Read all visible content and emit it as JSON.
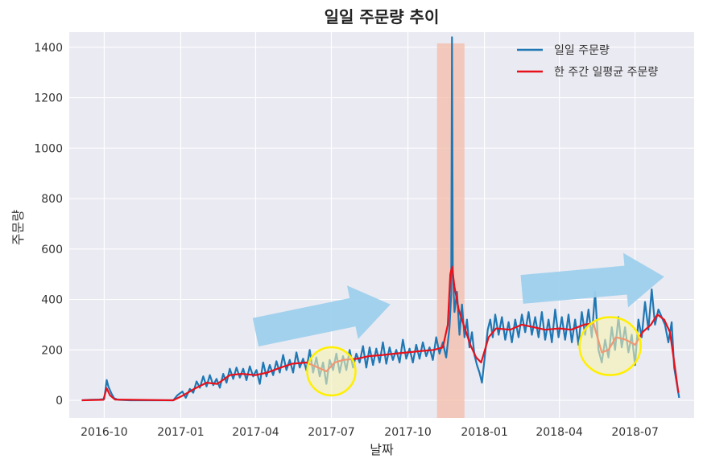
{
  "chart_data": {
    "type": "line",
    "title": "일일 주문량 추이",
    "xlabel": "날짜",
    "ylabel": "주문량",
    "x_range": [
      "2016-08-20",
      "2018-09-10"
    ],
    "ylim": [
      -70,
      1460
    ],
    "grid": true,
    "background": "#eaeaf2",
    "legend": {
      "position": "top-right"
    },
    "x_ticks": [
      {
        "date": "2016-10-01",
        "label": "2016-10"
      },
      {
        "date": "2017-01-01",
        "label": "2017-01"
      },
      {
        "date": "2017-04-01",
        "label": "2017-04"
      },
      {
        "date": "2017-07-01",
        "label": "2017-07"
      },
      {
        "date": "2017-10-01",
        "label": "2017-10"
      },
      {
        "date": "2018-01-01",
        "label": "2018-01"
      },
      {
        "date": "2018-04-01",
        "label": "2018-04"
      },
      {
        "date": "2018-07-01",
        "label": "2018-07"
      }
    ],
    "y_ticks": [
      {
        "value": 0,
        "label": "0"
      },
      {
        "value": 200,
        "label": "200"
      },
      {
        "value": 400,
        "label": "400"
      },
      {
        "value": 600,
        "label": "600"
      },
      {
        "value": 800,
        "label": "800"
      },
      {
        "value": 1000,
        "label": "1000"
      },
      {
        "value": 1200,
        "label": "1200"
      },
      {
        "value": 1400,
        "label": "1400"
      }
    ],
    "series": [
      {
        "name": "일일 주문량",
        "color": "#1f77b4",
        "points": [
          [
            "2016-09-04",
            0
          ],
          [
            "2016-09-15",
            2
          ],
          [
            "2016-09-25",
            3
          ],
          [
            "2016-10-01",
            5
          ],
          [
            "2016-10-04",
            80
          ],
          [
            "2016-10-06",
            55
          ],
          [
            "2016-10-08",
            40
          ],
          [
            "2016-10-10",
            25
          ],
          [
            "2016-10-13",
            8
          ],
          [
            "2016-10-18",
            2
          ],
          [
            "2016-11-01",
            0
          ],
          [
            "2016-12-01",
            0
          ],
          [
            "2016-12-23",
            0
          ],
          [
            "2016-12-28",
            20
          ],
          [
            "2017-01-03",
            35
          ],
          [
            "2017-01-07",
            10
          ],
          [
            "2017-01-12",
            45
          ],
          [
            "2017-01-16",
            30
          ],
          [
            "2017-01-20",
            75
          ],
          [
            "2017-01-24",
            50
          ],
          [
            "2017-01-28",
            95
          ],
          [
            "2017-02-01",
            55
          ],
          [
            "2017-02-05",
            100
          ],
          [
            "2017-02-09",
            60
          ],
          [
            "2017-02-13",
            85
          ],
          [
            "2017-02-17",
            50
          ],
          [
            "2017-02-21",
            105
          ],
          [
            "2017-02-25",
            70
          ],
          [
            "2017-03-01",
            125
          ],
          [
            "2017-03-05",
            85
          ],
          [
            "2017-03-09",
            130
          ],
          [
            "2017-03-13",
            90
          ],
          [
            "2017-03-17",
            125
          ],
          [
            "2017-03-21",
            80
          ],
          [
            "2017-03-25",
            135
          ],
          [
            "2017-03-29",
            95
          ],
          [
            "2017-04-02",
            120
          ],
          [
            "2017-04-06",
            65
          ],
          [
            "2017-04-10",
            150
          ],
          [
            "2017-04-14",
            95
          ],
          [
            "2017-04-18",
            140
          ],
          [
            "2017-04-22",
            100
          ],
          [
            "2017-04-26",
            155
          ],
          [
            "2017-04-30",
            110
          ],
          [
            "2017-05-04",
            180
          ],
          [
            "2017-05-08",
            120
          ],
          [
            "2017-05-12",
            160
          ],
          [
            "2017-05-16",
            110
          ],
          [
            "2017-05-20",
            190
          ],
          [
            "2017-05-24",
            130
          ],
          [
            "2017-05-28",
            165
          ],
          [
            "2017-06-01",
            120
          ],
          [
            "2017-06-05",
            200
          ],
          [
            "2017-06-09",
            110
          ],
          [
            "2017-06-13",
            170
          ],
          [
            "2017-06-17",
            95
          ],
          [
            "2017-06-21",
            150
          ],
          [
            "2017-06-25",
            65
          ],
          [
            "2017-06-29",
            160
          ],
          [
            "2017-07-03",
            120
          ],
          [
            "2017-07-07",
            185
          ],
          [
            "2017-07-11",
            110
          ],
          [
            "2017-07-15",
            175
          ],
          [
            "2017-07-19",
            120
          ],
          [
            "2017-07-23",
            200
          ],
          [
            "2017-07-27",
            130
          ],
          [
            "2017-07-31",
            185
          ],
          [
            "2017-08-04",
            150
          ],
          [
            "2017-08-08",
            215
          ],
          [
            "2017-08-12",
            130
          ],
          [
            "2017-08-16",
            210
          ],
          [
            "2017-08-20",
            140
          ],
          [
            "2017-08-24",
            205
          ],
          [
            "2017-08-28",
            150
          ],
          [
            "2017-09-01",
            230
          ],
          [
            "2017-09-05",
            145
          ],
          [
            "2017-09-09",
            210
          ],
          [
            "2017-09-13",
            160
          ],
          [
            "2017-09-17",
            200
          ],
          [
            "2017-09-21",
            150
          ],
          [
            "2017-09-25",
            240
          ],
          [
            "2017-09-29",
            165
          ],
          [
            "2017-10-03",
            205
          ],
          [
            "2017-10-07",
            150
          ],
          [
            "2017-10-11",
            220
          ],
          [
            "2017-10-15",
            165
          ],
          [
            "2017-10-19",
            230
          ],
          [
            "2017-10-23",
            175
          ],
          [
            "2017-10-27",
            210
          ],
          [
            "2017-10-31",
            160
          ],
          [
            "2017-11-04",
            250
          ],
          [
            "2017-11-08",
            185
          ],
          [
            "2017-11-12",
            230
          ],
          [
            "2017-11-16",
            170
          ],
          [
            "2017-11-20",
            290
          ],
          [
            "2017-11-22",
            420
          ],
          [
            "2017-11-23",
            1440
          ],
          [
            "2017-11-24",
            520
          ],
          [
            "2017-11-26",
            350
          ],
          [
            "2017-11-29",
            430
          ],
          [
            "2017-12-02",
            260
          ],
          [
            "2017-12-05",
            380
          ],
          [
            "2017-12-08",
            250
          ],
          [
            "2017-12-11",
            320
          ],
          [
            "2017-12-14",
            210
          ],
          [
            "2017-12-17",
            270
          ],
          [
            "2017-12-20",
            180
          ],
          [
            "2017-12-23",
            140
          ],
          [
            "2017-12-26",
            110
          ],
          [
            "2017-12-29",
            70
          ],
          [
            "2018-01-02",
            190
          ],
          [
            "2018-01-05",
            280
          ],
          [
            "2018-01-08",
            320
          ],
          [
            "2018-01-11",
            250
          ],
          [
            "2018-01-14",
            340
          ],
          [
            "2018-01-18",
            260
          ],
          [
            "2018-01-22",
            330
          ],
          [
            "2018-01-26",
            240
          ],
          [
            "2018-01-30",
            310
          ],
          [
            "2018-02-03",
            230
          ],
          [
            "2018-02-07",
            320
          ],
          [
            "2018-02-11",
            250
          ],
          [
            "2018-02-15",
            340
          ],
          [
            "2018-02-19",
            270
          ],
          [
            "2018-02-23",
            350
          ],
          [
            "2018-02-27",
            260
          ],
          [
            "2018-03-03",
            330
          ],
          [
            "2018-03-07",
            250
          ],
          [
            "2018-03-11",
            350
          ],
          [
            "2018-03-15",
            240
          ],
          [
            "2018-03-19",
            320
          ],
          [
            "2018-03-23",
            230
          ],
          [
            "2018-03-27",
            360
          ],
          [
            "2018-03-31",
            250
          ],
          [
            "2018-04-04",
            330
          ],
          [
            "2018-04-08",
            240
          ],
          [
            "2018-04-12",
            340
          ],
          [
            "2018-04-16",
            230
          ],
          [
            "2018-04-20",
            320
          ],
          [
            "2018-04-24",
            220
          ],
          [
            "2018-04-28",
            350
          ],
          [
            "2018-05-02",
            260
          ],
          [
            "2018-05-06",
            360
          ],
          [
            "2018-05-10",
            250
          ],
          [
            "2018-05-14",
            430
          ],
          [
            "2018-05-18",
            200
          ],
          [
            "2018-05-22",
            150
          ],
          [
            "2018-05-26",
            240
          ],
          [
            "2018-05-30",
            170
          ],
          [
            "2018-06-03",
            290
          ],
          [
            "2018-06-07",
            200
          ],
          [
            "2018-06-11",
            330
          ],
          [
            "2018-06-15",
            210
          ],
          [
            "2018-06-19",
            290
          ],
          [
            "2018-06-23",
            190
          ],
          [
            "2018-06-27",
            260
          ],
          [
            "2018-07-01",
            140
          ],
          [
            "2018-07-05",
            320
          ],
          [
            "2018-07-09",
            250
          ],
          [
            "2018-07-13",
            390
          ],
          [
            "2018-07-17",
            280
          ],
          [
            "2018-07-21",
            440
          ],
          [
            "2018-07-25",
            300
          ],
          [
            "2018-07-29",
            360
          ],
          [
            "2018-08-02",
            330
          ],
          [
            "2018-08-06",
            300
          ],
          [
            "2018-08-10",
            230
          ],
          [
            "2018-08-14",
            310
          ],
          [
            "2018-08-17",
            130
          ],
          [
            "2018-08-20",
            70
          ],
          [
            "2018-08-23",
            10
          ]
        ]
      },
      {
        "name": "한 주간 일평균 주문량",
        "color": "#e8111b",
        "points": [
          [
            "2016-09-04",
            0
          ],
          [
            "2016-09-30",
            2
          ],
          [
            "2016-10-04",
            48
          ],
          [
            "2016-10-08",
            20
          ],
          [
            "2016-10-14",
            3
          ],
          [
            "2016-12-23",
            0
          ],
          [
            "2017-01-03",
            18
          ],
          [
            "2017-01-17",
            45
          ],
          [
            "2017-02-01",
            70
          ],
          [
            "2017-02-14",
            65
          ],
          [
            "2017-03-01",
            100
          ],
          [
            "2017-03-15",
            105
          ],
          [
            "2017-04-01",
            100
          ],
          [
            "2017-04-15",
            110
          ],
          [
            "2017-05-01",
            130
          ],
          [
            "2017-05-15",
            145
          ],
          [
            "2017-06-01",
            150
          ],
          [
            "2017-06-15",
            130
          ],
          [
            "2017-06-25",
            115
          ],
          [
            "2017-07-05",
            150
          ],
          [
            "2017-07-15",
            160
          ],
          [
            "2017-08-01",
            165
          ],
          [
            "2017-08-15",
            175
          ],
          [
            "2017-09-01",
            180
          ],
          [
            "2017-09-15",
            185
          ],
          [
            "2017-10-01",
            190
          ],
          [
            "2017-10-15",
            195
          ],
          [
            "2017-11-01",
            200
          ],
          [
            "2017-11-12",
            210
          ],
          [
            "2017-11-18",
            300
          ],
          [
            "2017-11-21",
            500
          ],
          [
            "2017-11-23",
            530
          ],
          [
            "2017-11-26",
            450
          ],
          [
            "2017-12-01",
            360
          ],
          [
            "2017-12-08",
            290
          ],
          [
            "2017-12-15",
            220
          ],
          [
            "2017-12-22",
            170
          ],
          [
            "2017-12-28",
            150
          ],
          [
            "2018-01-06",
            250
          ],
          [
            "2018-01-15",
            285
          ],
          [
            "2018-02-01",
            280
          ],
          [
            "2018-02-15",
            300
          ],
          [
            "2018-03-01",
            290
          ],
          [
            "2018-03-15",
            280
          ],
          [
            "2018-04-01",
            285
          ],
          [
            "2018-04-15",
            280
          ],
          [
            "2018-05-01",
            300
          ],
          [
            "2018-05-12",
            305
          ],
          [
            "2018-05-22",
            190
          ],
          [
            "2018-05-30",
            200
          ],
          [
            "2018-06-08",
            250
          ],
          [
            "2018-06-20",
            240
          ],
          [
            "2018-07-01",
            220
          ],
          [
            "2018-07-10",
            270
          ],
          [
            "2018-07-20",
            300
          ],
          [
            "2018-07-28",
            340
          ],
          [
            "2018-08-05",
            320
          ],
          [
            "2018-08-12",
            270
          ],
          [
            "2018-08-18",
            130
          ],
          [
            "2018-08-22",
            30
          ]
        ]
      }
    ],
    "annotations": [
      {
        "kind": "shaded-span",
        "x": [
          "2017-11-05",
          "2017-12-08"
        ],
        "color": "#f4b9a4"
      },
      {
        "kind": "circle",
        "center": [
          "2017-07-01",
          115
        ],
        "color": "#ffef00",
        "fill": "#f7f1b0"
      },
      {
        "kind": "circle",
        "center": [
          "2018-06-01",
          215
        ],
        "color": "#ffef00",
        "fill": "#f7f1b0"
      },
      {
        "kind": "arrow",
        "from": [
          "2017-04-01",
          270
        ],
        "to": [
          "2017-09-10",
          380
        ],
        "color": "#9ed0ec"
      },
      {
        "kind": "arrow",
        "from": [
          "2018-02-15",
          440
        ],
        "to": [
          "2018-08-05",
          490
        ],
        "color": "#9ed0ec"
      }
    ]
  }
}
